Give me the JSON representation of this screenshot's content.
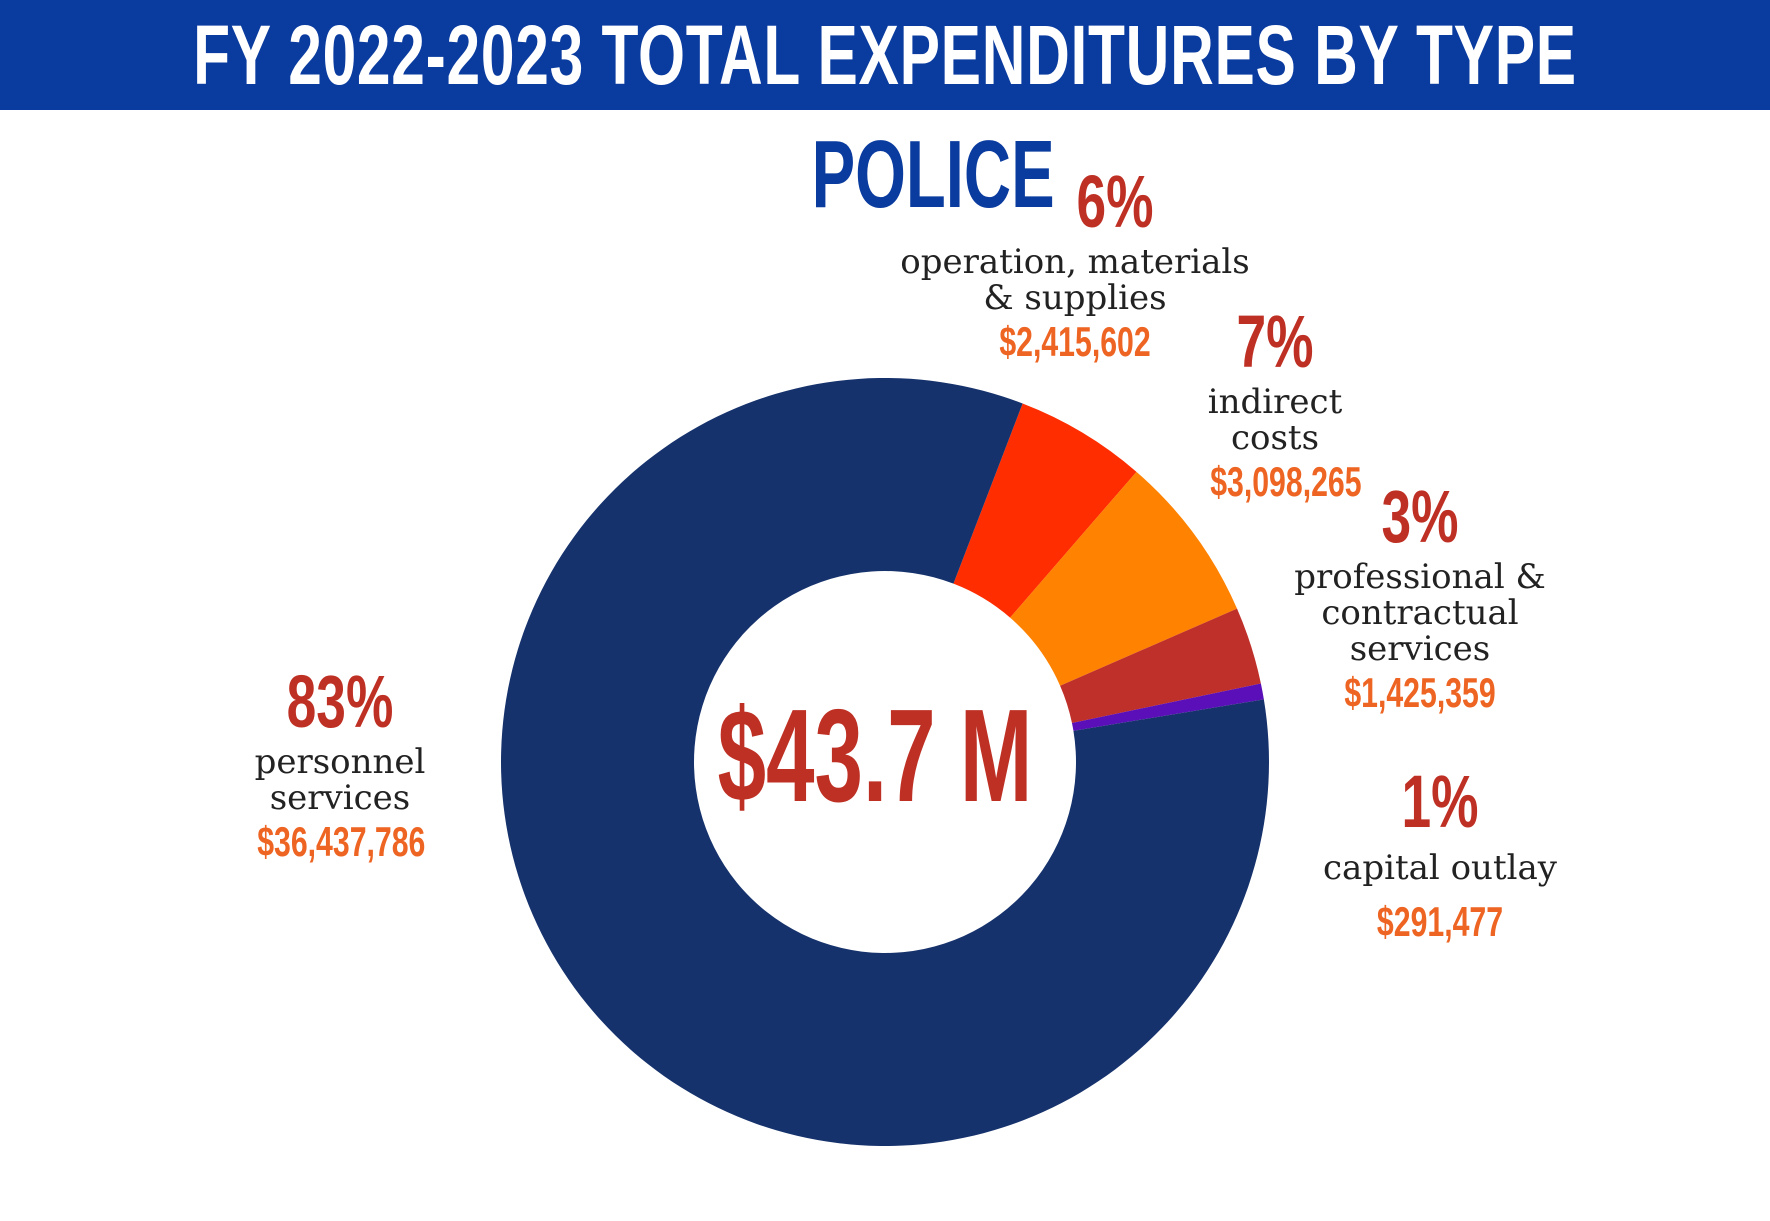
{
  "header": {
    "title": "FY 2022-2023 TOTAL EXPENDITURES BY TYPE"
  },
  "chart_data": {
    "type": "pie",
    "variant": "donut",
    "title": "FY 2022-2023 TOTAL EXPENDITURES BY TYPE",
    "subtitle": "POLICE",
    "center_label": "$43.7 M",
    "slices": [
      {
        "name": "personnel\nservices",
        "percent": "83%",
        "amount": "$36,437,786",
        "value": 36437786,
        "color": "#16326c"
      },
      {
        "name": "operation, materials\n& supplies",
        "percent": "6%",
        "amount": "$2,415,602",
        "value": 2415602,
        "color": "#ff2d00"
      },
      {
        "name": "indirect\ncosts",
        "percent": "7%",
        "amount": "$3,098,265",
        "value": 3098265,
        "color": "#ff8200"
      },
      {
        "name": "professional &\ncontractual\nservices",
        "percent": "3%",
        "amount": "$1,425,359",
        "value": 1425359,
        "color": "#c0302a"
      },
      {
        "name": "capital outlay",
        "percent": "1%",
        "amount": "$291,477",
        "value": 291477,
        "color": "#5a0fb8"
      }
    ]
  }
}
